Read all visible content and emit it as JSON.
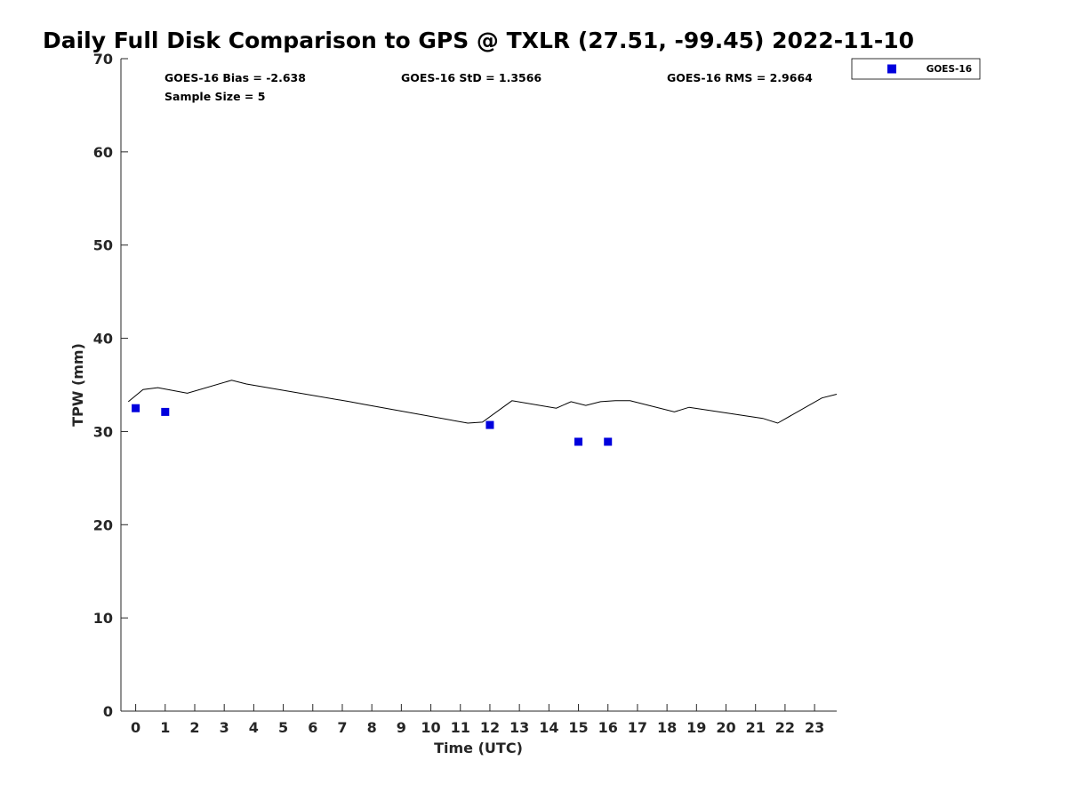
{
  "chart_data": {
    "type": "scatter",
    "title": "Daily Full Disk Comparison to GPS @ TXLR (27.51, -99.45) 2022-11-10",
    "xlabel": "Time (UTC)",
    "ylabel": "TPW (mm)",
    "xlim": [
      -0.5,
      23.75
    ],
    "ylim": [
      0,
      70
    ],
    "xticks": [
      0,
      1,
      2,
      3,
      4,
      5,
      6,
      7,
      8,
      9,
      10,
      11,
      12,
      13,
      14,
      15,
      16,
      17,
      18,
      19,
      20,
      21,
      22,
      23
    ],
    "yticks": [
      0,
      10,
      20,
      30,
      40,
      50,
      60,
      70
    ],
    "grid": false,
    "legend_placement": "outside-top-right",
    "stats": {
      "bias": "GOES-16 Bias = -2.638",
      "std": "GOES-16 StD = 1.3566",
      "rms": "GOES-16 RMS = 2.9664",
      "sample_size": "Sample Size = 5"
    },
    "series": [
      {
        "name": "GOES-16",
        "kind": "scatter",
        "marker": "square",
        "color": "#0000dd",
        "x": [
          0,
          1,
          12,
          15,
          16
        ],
        "y": [
          32.5,
          32.1,
          30.7,
          28.9,
          28.9
        ]
      },
      {
        "kind": "line",
        "color": "#000000",
        "x": [
          -0.25,
          0.25,
          0.75,
          1.75,
          3.25,
          3.75,
          7.25,
          7.75,
          11.25,
          11.75,
          12.75,
          14.25,
          14.75,
          15.25,
          15.75,
          16.25,
          16.75,
          18.25,
          18.75,
          21.25,
          21.75,
          23.25,
          23.75
        ],
        "y": [
          33.2,
          34.5,
          34.7,
          34.1,
          35.5,
          35.1,
          33.2,
          32.9,
          30.9,
          31.0,
          33.3,
          32.5,
          33.2,
          32.8,
          33.2,
          33.3,
          33.3,
          32.1,
          32.6,
          31.4,
          30.9,
          33.6,
          34.0
        ]
      }
    ]
  }
}
